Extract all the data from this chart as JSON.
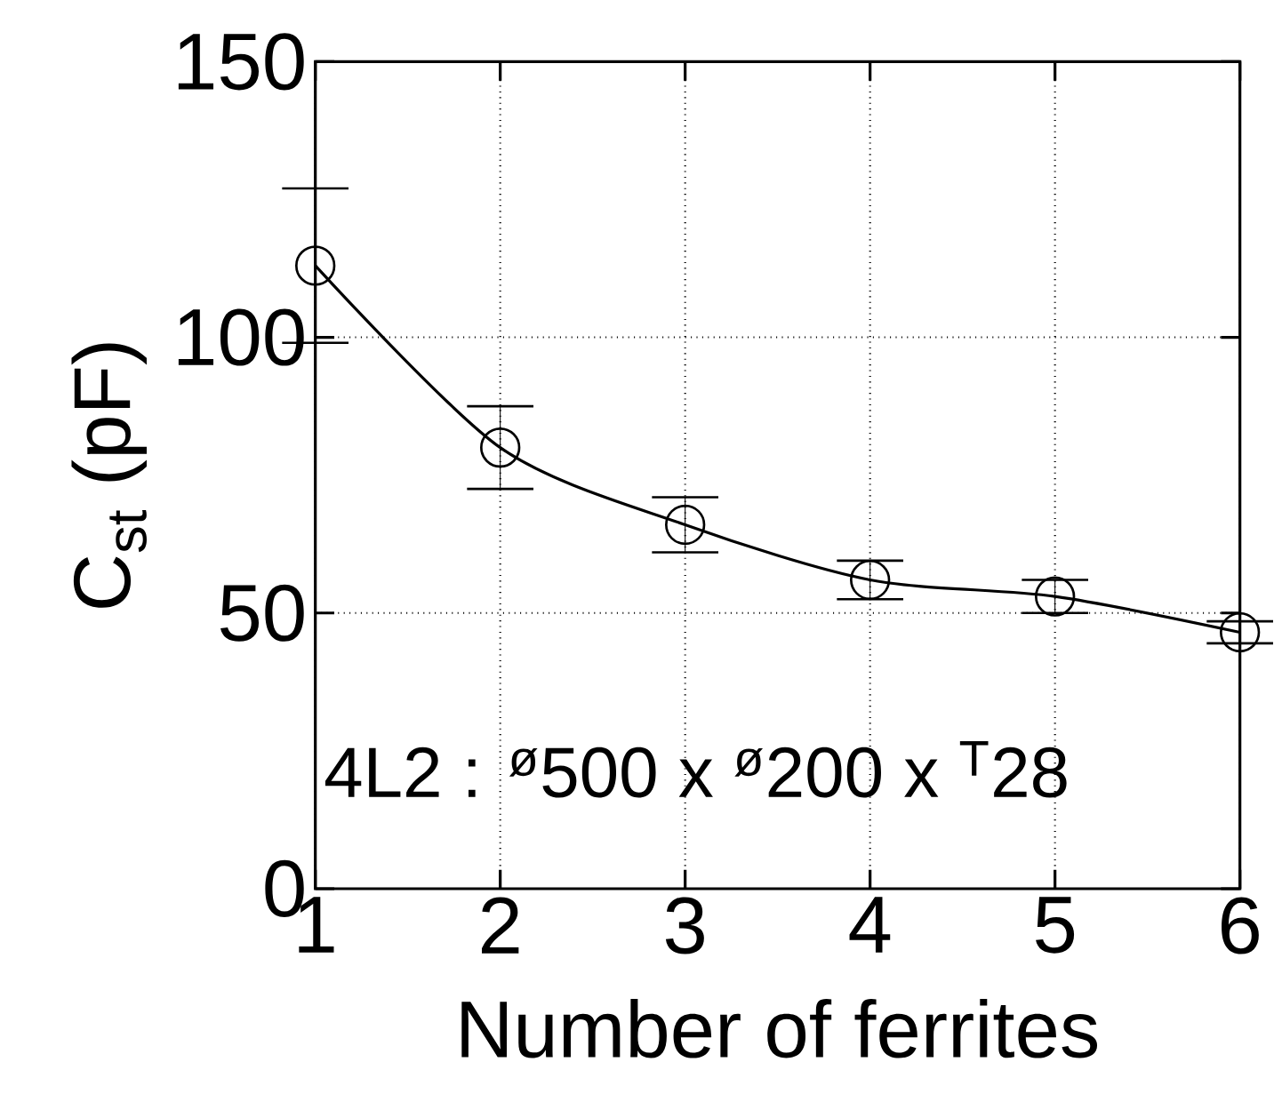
{
  "chart_data": {
    "type": "line",
    "xlabel": "Number of ferrites",
    "ylabel": "C$_{st}$ (pF)",
    "x": [
      1,
      2,
      3,
      4,
      5,
      6
    ],
    "values": [
      113,
      80,
      66,
      56,
      53,
      46.5
    ],
    "errors": [
      14,
      7.5,
      5,
      3.5,
      3,
      2
    ],
    "color": "#000000",
    "xlim": [
      1,
      6
    ],
    "ylim": [
      0,
      150
    ],
    "xticks": [
      1,
      2,
      3,
      4,
      5,
      6
    ],
    "yticks": [
      0,
      50,
      100,
      150
    ],
    "grid": true,
    "marker": "circle",
    "line_style": "solid",
    "annotations": [
      "4L2 : $^{ø}$500 x $^{ø}$200 x $^{T}$28"
    ]
  }
}
